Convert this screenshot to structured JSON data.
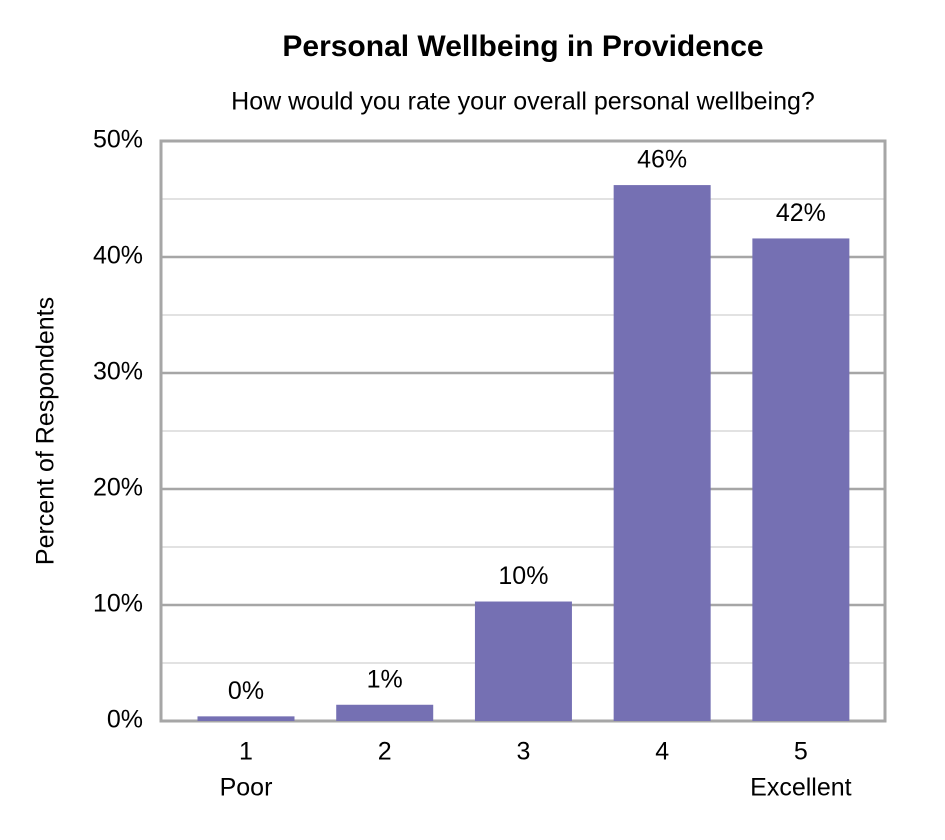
{
  "chart_data": {
    "type": "bar",
    "title": "Personal Wellbeing in Providence",
    "subtitle": "How would you rate your overall personal wellbeing?",
    "y_label": "Percent of Respondents",
    "categories": [
      "1",
      "2",
      "3",
      "4",
      "5"
    ],
    "category_sublabels": [
      "Poor",
      null,
      null,
      null,
      "Excellent"
    ],
    "values": [
      0.4,
      1.4,
      10.3,
      46.2,
      41.6
    ],
    "value_labels": [
      "0%",
      "1%",
      "10%",
      "46%",
      "42%"
    ],
    "color": "#7570b3",
    "ylim": [
      0,
      50
    ],
    "yticks": [
      {
        "value": 0,
        "label": "0%"
      },
      {
        "value": 10,
        "label": "10%"
      },
      {
        "value": 20,
        "label": "20%"
      },
      {
        "value": 30,
        "label": "30%"
      },
      {
        "value": 40,
        "label": "40%"
      },
      {
        "value": 50,
        "label": "50%"
      }
    ],
    "minor_yticks": [
      5,
      15,
      25,
      35,
      45
    ],
    "grid": true
  }
}
